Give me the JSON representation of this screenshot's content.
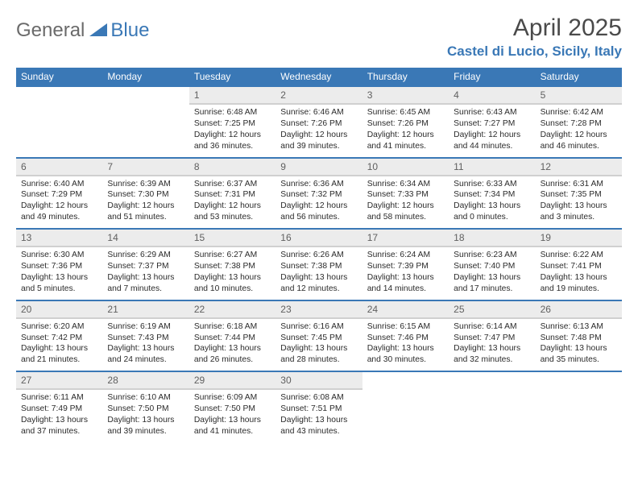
{
  "logo": {
    "part1": "General",
    "part2": "Blue"
  },
  "title": "April 2025",
  "location": "Castel di Lucio, Sicily, Italy",
  "colors": {
    "header_bg": "#3a78b6",
    "header_text": "#ffffff",
    "daynum_bg": "#ececec",
    "daynum_text": "#606060",
    "border": "#3a78b6",
    "logo_gray": "#6a6a6a",
    "logo_blue": "#3a78b6",
    "body_text": "#2b2b2b"
  },
  "weekdays": [
    "Sunday",
    "Monday",
    "Tuesday",
    "Wednesday",
    "Thursday",
    "Friday",
    "Saturday"
  ],
  "cells": [
    {
      "blank": true
    },
    {
      "blank": true
    },
    {
      "n": "1",
      "sr": "6:48 AM",
      "ss": "7:25 PM",
      "d1": "12 hours",
      "d2": "and 36 minutes."
    },
    {
      "n": "2",
      "sr": "6:46 AM",
      "ss": "7:26 PM",
      "d1": "12 hours",
      "d2": "and 39 minutes."
    },
    {
      "n": "3",
      "sr": "6:45 AM",
      "ss": "7:26 PM",
      "d1": "12 hours",
      "d2": "and 41 minutes."
    },
    {
      "n": "4",
      "sr": "6:43 AM",
      "ss": "7:27 PM",
      "d1": "12 hours",
      "d2": "and 44 minutes."
    },
    {
      "n": "5",
      "sr": "6:42 AM",
      "ss": "7:28 PM",
      "d1": "12 hours",
      "d2": "and 46 minutes."
    },
    {
      "n": "6",
      "sr": "6:40 AM",
      "ss": "7:29 PM",
      "d1": "12 hours",
      "d2": "and 49 minutes."
    },
    {
      "n": "7",
      "sr": "6:39 AM",
      "ss": "7:30 PM",
      "d1": "12 hours",
      "d2": "and 51 minutes."
    },
    {
      "n": "8",
      "sr": "6:37 AM",
      "ss": "7:31 PM",
      "d1": "12 hours",
      "d2": "and 53 minutes."
    },
    {
      "n": "9",
      "sr": "6:36 AM",
      "ss": "7:32 PM",
      "d1": "12 hours",
      "d2": "and 56 minutes."
    },
    {
      "n": "10",
      "sr": "6:34 AM",
      "ss": "7:33 PM",
      "d1": "12 hours",
      "d2": "and 58 minutes."
    },
    {
      "n": "11",
      "sr": "6:33 AM",
      "ss": "7:34 PM",
      "d1": "13 hours",
      "d2": "and 0 minutes."
    },
    {
      "n": "12",
      "sr": "6:31 AM",
      "ss": "7:35 PM",
      "d1": "13 hours",
      "d2": "and 3 minutes."
    },
    {
      "n": "13",
      "sr": "6:30 AM",
      "ss": "7:36 PM",
      "d1": "13 hours",
      "d2": "and 5 minutes."
    },
    {
      "n": "14",
      "sr": "6:29 AM",
      "ss": "7:37 PM",
      "d1": "13 hours",
      "d2": "and 7 minutes."
    },
    {
      "n": "15",
      "sr": "6:27 AM",
      "ss": "7:38 PM",
      "d1": "13 hours",
      "d2": "and 10 minutes."
    },
    {
      "n": "16",
      "sr": "6:26 AM",
      "ss": "7:38 PM",
      "d1": "13 hours",
      "d2": "and 12 minutes."
    },
    {
      "n": "17",
      "sr": "6:24 AM",
      "ss": "7:39 PM",
      "d1": "13 hours",
      "d2": "and 14 minutes."
    },
    {
      "n": "18",
      "sr": "6:23 AM",
      "ss": "7:40 PM",
      "d1": "13 hours",
      "d2": "and 17 minutes."
    },
    {
      "n": "19",
      "sr": "6:22 AM",
      "ss": "7:41 PM",
      "d1": "13 hours",
      "d2": "and 19 minutes."
    },
    {
      "n": "20",
      "sr": "6:20 AM",
      "ss": "7:42 PM",
      "d1": "13 hours",
      "d2": "and 21 minutes."
    },
    {
      "n": "21",
      "sr": "6:19 AM",
      "ss": "7:43 PM",
      "d1": "13 hours",
      "d2": "and 24 minutes."
    },
    {
      "n": "22",
      "sr": "6:18 AM",
      "ss": "7:44 PM",
      "d1": "13 hours",
      "d2": "and 26 minutes."
    },
    {
      "n": "23",
      "sr": "6:16 AM",
      "ss": "7:45 PM",
      "d1": "13 hours",
      "d2": "and 28 minutes."
    },
    {
      "n": "24",
      "sr": "6:15 AM",
      "ss": "7:46 PM",
      "d1": "13 hours",
      "d2": "and 30 minutes."
    },
    {
      "n": "25",
      "sr": "6:14 AM",
      "ss": "7:47 PM",
      "d1": "13 hours",
      "d2": "and 32 minutes."
    },
    {
      "n": "26",
      "sr": "6:13 AM",
      "ss": "7:48 PM",
      "d1": "13 hours",
      "d2": "and 35 minutes."
    },
    {
      "n": "27",
      "sr": "6:11 AM",
      "ss": "7:49 PM",
      "d1": "13 hours",
      "d2": "and 37 minutes."
    },
    {
      "n": "28",
      "sr": "6:10 AM",
      "ss": "7:50 PM",
      "d1": "13 hours",
      "d2": "and 39 minutes."
    },
    {
      "n": "29",
      "sr": "6:09 AM",
      "ss": "7:50 PM",
      "d1": "13 hours",
      "d2": "and 41 minutes."
    },
    {
      "n": "30",
      "sr": "6:08 AM",
      "ss": "7:51 PM",
      "d1": "13 hours",
      "d2": "and 43 minutes."
    },
    {
      "blank": true
    },
    {
      "blank": true
    },
    {
      "blank": true
    }
  ],
  "labels": {
    "sunrise": "Sunrise:",
    "sunset": "Sunset:",
    "daylight": "Daylight:"
  }
}
